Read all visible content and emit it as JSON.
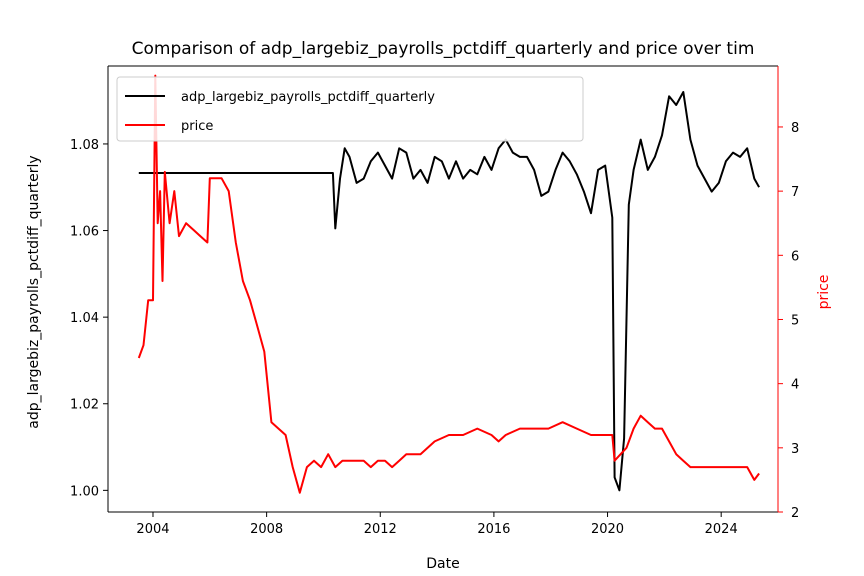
{
  "chart_data": {
    "type": "line",
    "title": "Comparison of adp_largebiz_payrolls_pctdiff_quarterly and price over tim",
    "xlabel": "Date",
    "ylabel_left": "adp_largebiz_payrolls_pctdiff_quarterly",
    "ylabel_right": "price",
    "xlim": [
      "2002-06",
      "2026-01"
    ],
    "ylim_left": [
      0.995,
      1.098
    ],
    "ylim_right": [
      2.0,
      8.95
    ],
    "x_tick_labels": [
      "2004",
      "2008",
      "2012",
      "2016",
      "2020",
      "2024"
    ],
    "y_left_tick_labels": [
      "1.00",
      "1.02",
      "1.04",
      "1.06",
      "1.08"
    ],
    "y_right_tick_labels": [
      "2",
      "3",
      "4",
      "5",
      "6",
      "7",
      "8"
    ],
    "legend_position": "upper left",
    "grid": false,
    "series": [
      {
        "name": "adp_largebiz_payrolls_pctdiff_quarterly",
        "color": "#000000",
        "axis": "left",
        "points": [
          [
            "2003-07",
            1.0733
          ],
          [
            "2010-05",
            1.0733
          ],
          [
            "2010-06",
            1.0605
          ],
          [
            "2010-08",
            1.072
          ],
          [
            "2010-10",
            1.079
          ],
          [
            "2010-12",
            1.077
          ],
          [
            "2011-03",
            1.071
          ],
          [
            "2011-06",
            1.072
          ],
          [
            "2011-09",
            1.076
          ],
          [
            "2011-12",
            1.078
          ],
          [
            "2012-03",
            1.075
          ],
          [
            "2012-06",
            1.072
          ],
          [
            "2012-09",
            1.079
          ],
          [
            "2012-12",
            1.078
          ],
          [
            "2013-03",
            1.072
          ],
          [
            "2013-06",
            1.074
          ],
          [
            "2013-09",
            1.071
          ],
          [
            "2013-12",
            1.077
          ],
          [
            "2014-03",
            1.076
          ],
          [
            "2014-06",
            1.072
          ],
          [
            "2014-09",
            1.076
          ],
          [
            "2014-12",
            1.072
          ],
          [
            "2015-03",
            1.074
          ],
          [
            "2015-06",
            1.073
          ],
          [
            "2015-09",
            1.077
          ],
          [
            "2015-12",
            1.074
          ],
          [
            "2016-03",
            1.079
          ],
          [
            "2016-06",
            1.081
          ],
          [
            "2016-09",
            1.078
          ],
          [
            "2016-12",
            1.077
          ],
          [
            "2017-03",
            1.077
          ],
          [
            "2017-06",
            1.074
          ],
          [
            "2017-09",
            1.068
          ],
          [
            "2017-12",
            1.069
          ],
          [
            "2018-03",
            1.074
          ],
          [
            "2018-06",
            1.078
          ],
          [
            "2018-09",
            1.076
          ],
          [
            "2018-12",
            1.073
          ],
          [
            "2019-03",
            1.069
          ],
          [
            "2019-06",
            1.064
          ],
          [
            "2019-09",
            1.074
          ],
          [
            "2019-12",
            1.075
          ],
          [
            "2020-03",
            1.063
          ],
          [
            "2020-04",
            1.003
          ],
          [
            "2020-06",
            1.0
          ],
          [
            "2020-08",
            1.012
          ],
          [
            "2020-10",
            1.066
          ],
          [
            "2020-12",
            1.074
          ],
          [
            "2021-03",
            1.081
          ],
          [
            "2021-06",
            1.074
          ],
          [
            "2021-09",
            1.077
          ],
          [
            "2021-12",
            1.082
          ],
          [
            "2022-03",
            1.091
          ],
          [
            "2022-06",
            1.089
          ],
          [
            "2022-09",
            1.092
          ],
          [
            "2022-12",
            1.081
          ],
          [
            "2023-03",
            1.075
          ],
          [
            "2023-06",
            1.072
          ],
          [
            "2023-09",
            1.069
          ],
          [
            "2023-12",
            1.071
          ],
          [
            "2024-03",
            1.076
          ],
          [
            "2024-06",
            1.078
          ],
          [
            "2024-09",
            1.077
          ],
          [
            "2024-12",
            1.079
          ],
          [
            "2025-03",
            1.072
          ],
          [
            "2025-05",
            1.07
          ]
        ]
      },
      {
        "name": "price",
        "color": "#ff0000",
        "axis": "right",
        "points": [
          [
            "2003-07",
            4.4
          ],
          [
            "2003-09",
            4.6
          ],
          [
            "2003-11",
            5.3
          ],
          [
            "2004-01",
            5.3
          ],
          [
            "2004-02",
            8.8
          ],
          [
            "2004-03",
            6.5
          ],
          [
            "2004-04",
            7.0
          ],
          [
            "2004-05",
            5.6
          ],
          [
            "2004-06",
            7.3
          ],
          [
            "2004-08",
            6.5
          ],
          [
            "2004-10",
            7.0
          ],
          [
            "2004-12",
            6.3
          ],
          [
            "2005-03",
            6.5
          ],
          [
            "2005-06",
            6.4
          ],
          [
            "2005-09",
            6.3
          ],
          [
            "2005-12",
            6.2
          ],
          [
            "2006-01",
            7.2
          ],
          [
            "2006-06",
            7.2
          ],
          [
            "2006-09",
            7.0
          ],
          [
            "2006-12",
            6.2
          ],
          [
            "2007-03",
            5.6
          ],
          [
            "2007-06",
            5.3
          ],
          [
            "2007-09",
            4.9
          ],
          [
            "2007-12",
            4.5
          ],
          [
            "2008-03",
            3.4
          ],
          [
            "2008-06",
            3.3
          ],
          [
            "2008-09",
            3.2
          ],
          [
            "2008-12",
            2.7
          ],
          [
            "2009-03",
            2.3
          ],
          [
            "2009-06",
            2.7
          ],
          [
            "2009-09",
            2.8
          ],
          [
            "2009-12",
            2.7
          ],
          [
            "2010-03",
            2.9
          ],
          [
            "2010-06",
            2.7
          ],
          [
            "2010-09",
            2.8
          ],
          [
            "2010-12",
            2.8
          ],
          [
            "2011-03",
            2.8
          ],
          [
            "2011-06",
            2.8
          ],
          [
            "2011-09",
            2.7
          ],
          [
            "2011-12",
            2.8
          ],
          [
            "2012-03",
            2.8
          ],
          [
            "2012-06",
            2.7
          ],
          [
            "2012-09",
            2.8
          ],
          [
            "2012-12",
            2.9
          ],
          [
            "2013-06",
            2.9
          ],
          [
            "2013-12",
            3.1
          ],
          [
            "2014-06",
            3.2
          ],
          [
            "2014-12",
            3.2
          ],
          [
            "2015-06",
            3.3
          ],
          [
            "2015-12",
            3.2
          ],
          [
            "2016-03",
            3.1
          ],
          [
            "2016-06",
            3.2
          ],
          [
            "2016-12",
            3.3
          ],
          [
            "2017-06",
            3.3
          ],
          [
            "2017-12",
            3.3
          ],
          [
            "2018-06",
            3.4
          ],
          [
            "2018-12",
            3.3
          ],
          [
            "2019-06",
            3.2
          ],
          [
            "2019-12",
            3.2
          ],
          [
            "2020-03",
            3.2
          ],
          [
            "2020-04",
            2.8
          ],
          [
            "2020-09",
            3.0
          ],
          [
            "2020-12",
            3.3
          ],
          [
            "2021-03",
            3.5
          ],
          [
            "2021-06",
            3.4
          ],
          [
            "2021-09",
            3.3
          ],
          [
            "2021-12",
            3.3
          ],
          [
            "2022-03",
            3.1
          ],
          [
            "2022-06",
            2.9
          ],
          [
            "2022-09",
            2.8
          ],
          [
            "2022-12",
            2.7
          ],
          [
            "2023-06",
            2.7
          ],
          [
            "2023-12",
            2.7
          ],
          [
            "2024-06",
            2.7
          ],
          [
            "2024-12",
            2.7
          ],
          [
            "2025-03",
            2.5
          ],
          [
            "2025-05",
            2.6
          ]
        ]
      }
    ]
  }
}
